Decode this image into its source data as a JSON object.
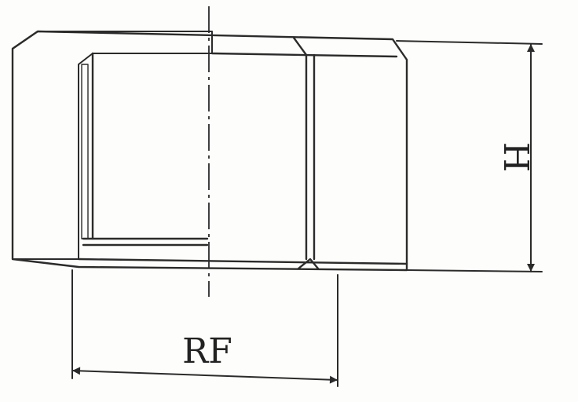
{
  "dimensions": {
    "width_label": "RF",
    "height_label": "H"
  },
  "colors": {
    "ink": "#2b2b2b",
    "paper": "#fdfdfb"
  }
}
